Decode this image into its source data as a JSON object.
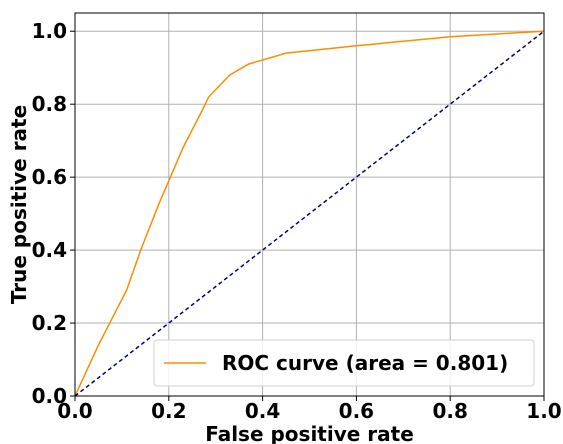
{
  "chart_data": {
    "type": "line",
    "xlabel": "False positive rate",
    "ylabel": "True positive rate",
    "xlim": [
      0,
      1
    ],
    "ylim": [
      0,
      1.05
    ],
    "xticks": [
      0.0,
      0.2,
      0.4,
      0.6,
      0.8,
      1.0
    ],
    "yticks": [
      0.0,
      0.2,
      0.4,
      0.6,
      0.8,
      1.0
    ],
    "xtick_labels": [
      "0.0",
      "0.2",
      "0.4",
      "0.6",
      "0.8",
      "1.0"
    ],
    "ytick_labels": [
      "0.0",
      "0.2",
      "0.4",
      "0.6",
      "0.8",
      "1.0"
    ],
    "grid": true,
    "legend_position": "lower-right",
    "series": [
      {
        "name": "ROC curve (area = 0.801)",
        "color": "#ff8c00",
        "style": "solid",
        "points": [
          [
            0.0,
            0.0
          ],
          [
            0.05,
            0.14
          ],
          [
            0.11,
            0.29
          ],
          [
            0.14,
            0.4
          ],
          [
            0.18,
            0.53
          ],
          [
            0.23,
            0.68
          ],
          [
            0.27,
            0.78
          ],
          [
            0.285,
            0.82
          ],
          [
            0.33,
            0.88
          ],
          [
            0.37,
            0.91
          ],
          [
            0.45,
            0.94
          ],
          [
            0.6,
            0.96
          ],
          [
            0.8,
            0.985
          ],
          [
            1.0,
            1.0
          ]
        ]
      },
      {
        "color": "#000080",
        "style": "dashed",
        "points": [
          [
            0.0,
            0.0
          ],
          [
            1.0,
            1.0
          ]
        ]
      }
    ]
  }
}
